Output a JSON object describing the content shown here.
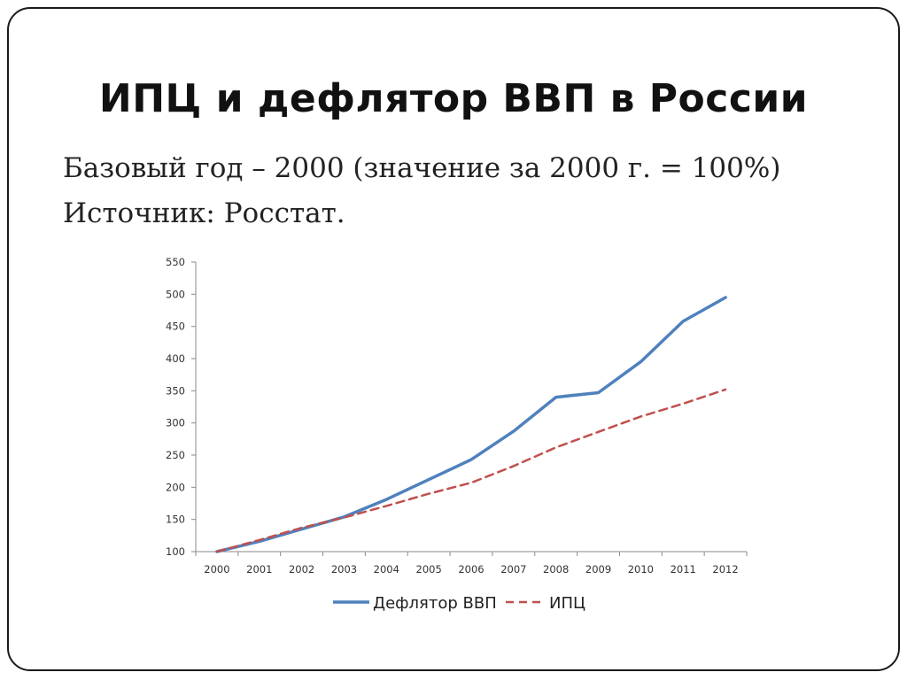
{
  "slide": {
    "title": "ИПЦ и дефлятор ВВП в России",
    "lines": [
      "Базовый год – 2000 (значение за 2000 г. = 100%)",
      "Источник: Росстат."
    ]
  },
  "chart_data": {
    "type": "line",
    "x": [
      "2000",
      "2001",
      "2002",
      "2003",
      "2004",
      "2005",
      "2006",
      "2007",
      "2008",
      "2009",
      "2010",
      "2011",
      "2012"
    ],
    "ylim": [
      100,
      550
    ],
    "yticks": [
      100,
      150,
      200,
      250,
      300,
      350,
      400,
      450,
      500,
      550
    ],
    "grid": false,
    "legend_position": "bottom",
    "series": [
      {
        "name": "Дефлятор ВВП",
        "color": "#4f81bd",
        "style": "solid",
        "values": [
          100,
          116,
          135,
          154,
          181,
          212,
          243,
          287,
          340,
          347,
          395,
          458,
          495
        ]
      },
      {
        "name": "ИПЦ",
        "color": "#c0504d",
        "style": "dashed",
        "values": [
          100,
          118,
          137,
          153,
          171,
          190,
          207,
          233,
          262,
          286,
          310,
          330,
          352
        ]
      }
    ]
  }
}
